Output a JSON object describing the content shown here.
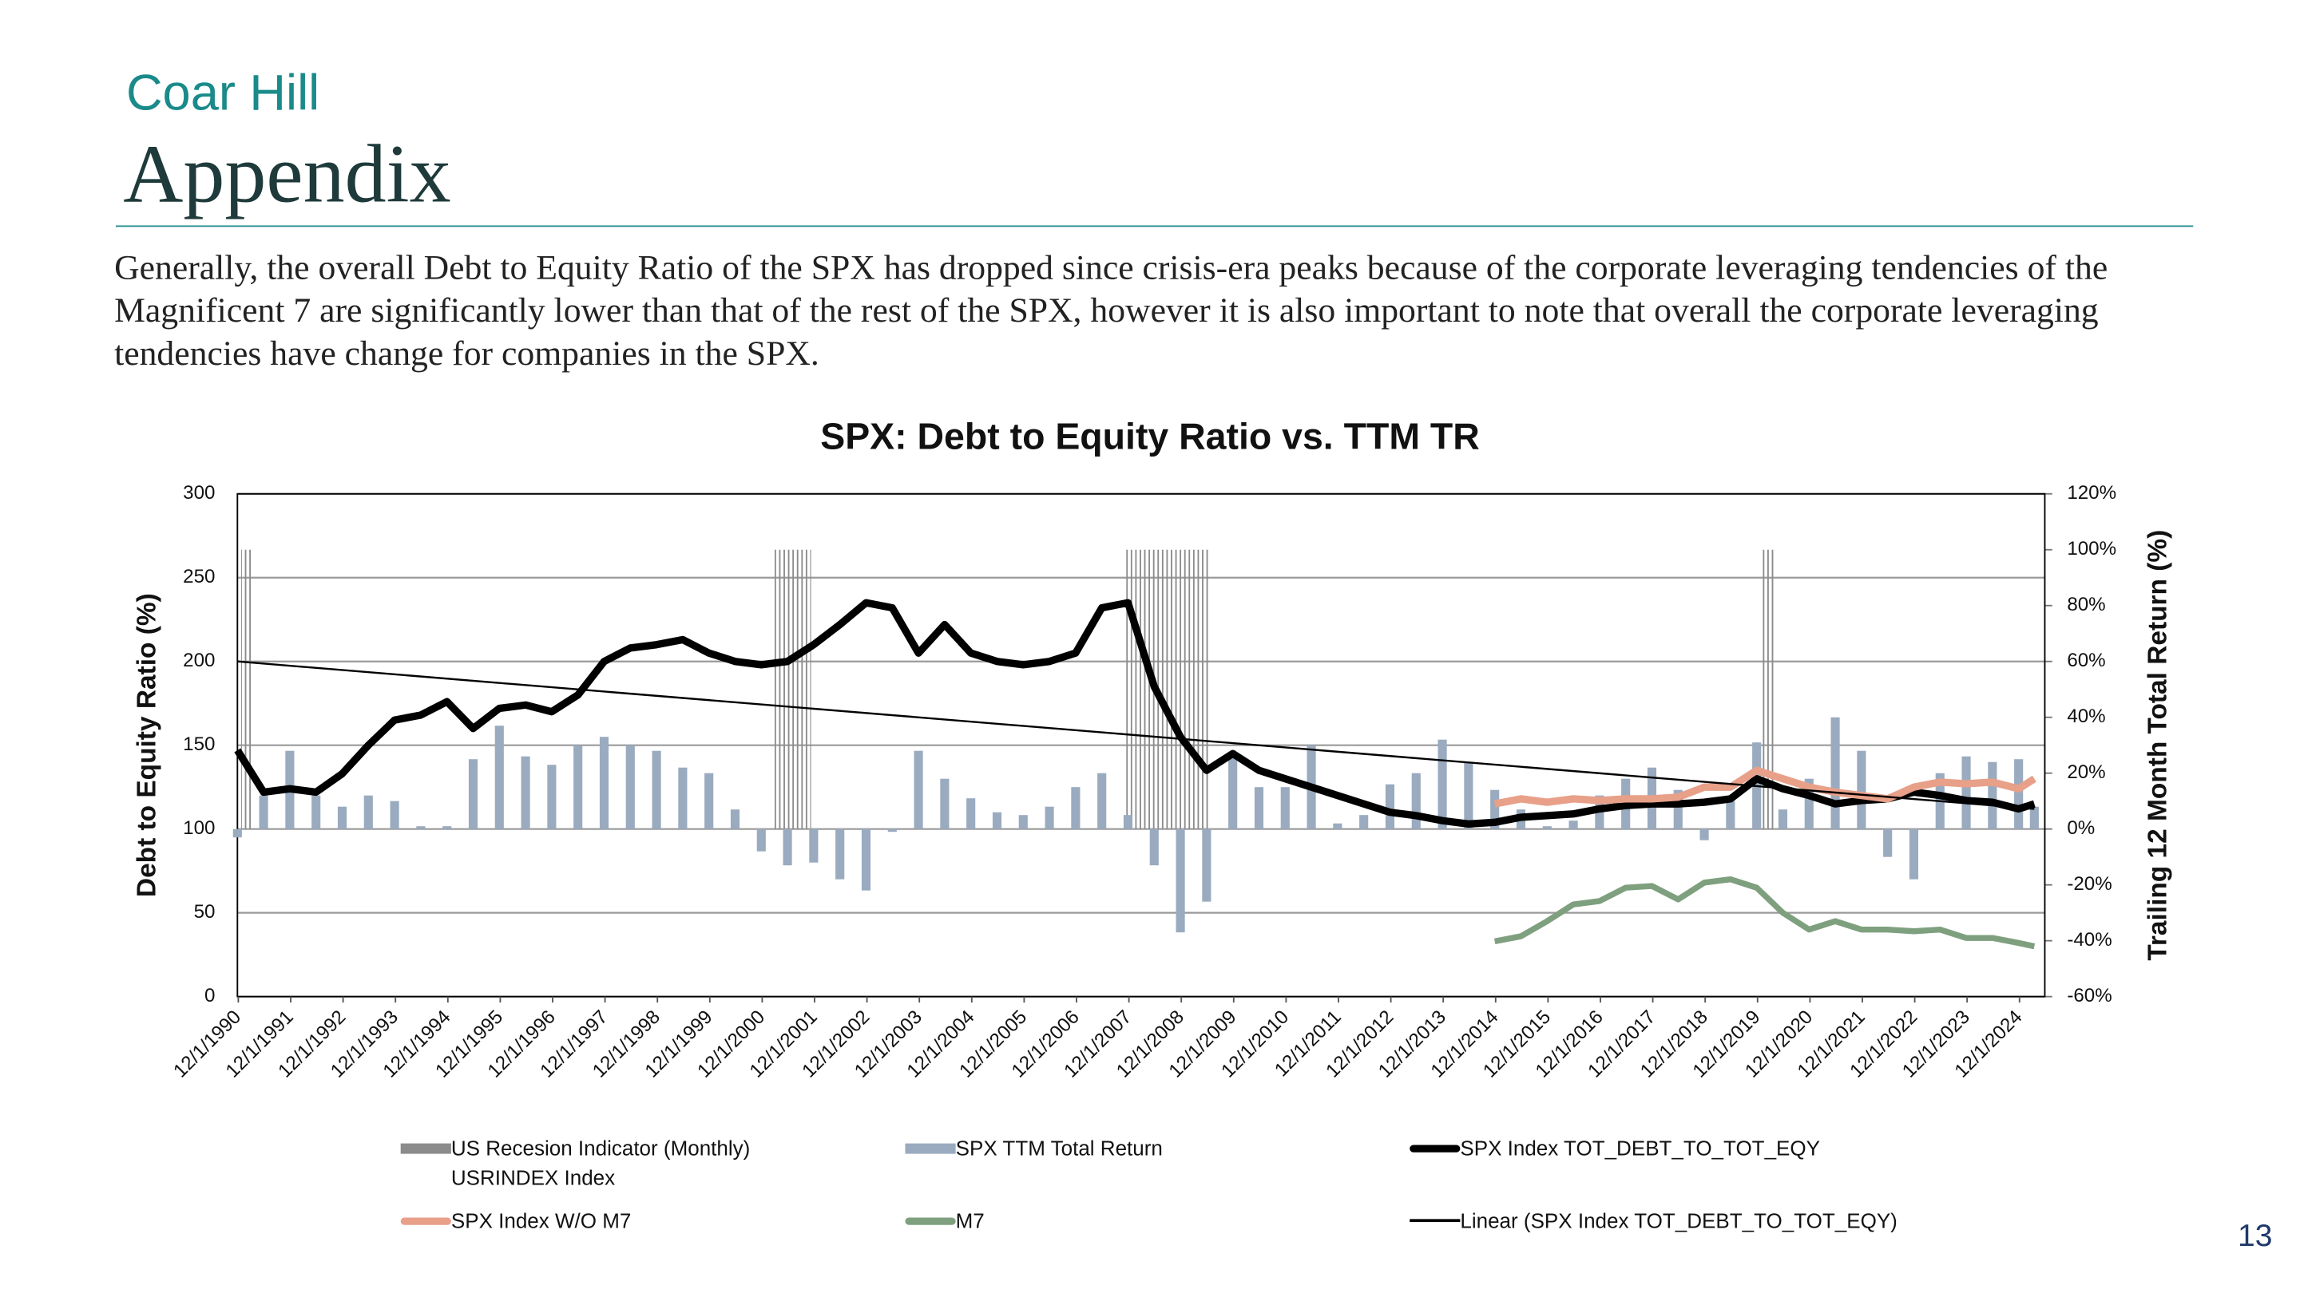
{
  "header": {
    "brand": "Coar Hill",
    "title": "Appendix"
  },
  "paragraph": "Generally, the overall Debt to Equity Ratio of the SPX has dropped since crisis-era peaks because of the corporate leveraging tendencies of the Magnificent 7 are significantly lower than that of the rest of the SPX, however it is also important to note that overall the corporate leveraging tendencies have change for companies in the SPX.",
  "page_number": "13",
  "chart_data": {
    "type": "combo",
    "title": "SPX: Debt to Equity Ratio vs. TTM TR",
    "ylabel": "Debt to Equity Ratio (%)",
    "y2label": "Trailing 12 Month Total Return (%)",
    "grid": true,
    "xlim": [
      1990.9,
      2025.4
    ],
    "xticks": [
      {
        "value": 1990.917,
        "label": "12/1/1990"
      },
      {
        "value": 1991.917,
        "label": "12/1/1991"
      },
      {
        "value": 1992.917,
        "label": "12/1/1992"
      },
      {
        "value": 1993.917,
        "label": "12/1/1993"
      },
      {
        "value": 1994.917,
        "label": "12/1/1994"
      },
      {
        "value": 1995.917,
        "label": "12/1/1995"
      },
      {
        "value": 1996.917,
        "label": "12/1/1996"
      },
      {
        "value": 1997.917,
        "label": "12/1/1997"
      },
      {
        "value": 1998.917,
        "label": "12/1/1998"
      },
      {
        "value": 1999.917,
        "label": "12/1/1999"
      },
      {
        "value": 2000.917,
        "label": "12/1/2000"
      },
      {
        "value": 2001.917,
        "label": "12/1/2001"
      },
      {
        "value": 2002.917,
        "label": "12/1/2002"
      },
      {
        "value": 2003.917,
        "label": "12/1/2003"
      },
      {
        "value": 2004.917,
        "label": "12/1/2004"
      },
      {
        "value": 2005.917,
        "label": "12/1/2005"
      },
      {
        "value": 2006.917,
        "label": "12/1/2006"
      },
      {
        "value": 2007.917,
        "label": "12/1/2007"
      },
      {
        "value": 2008.917,
        "label": "12/1/2008"
      },
      {
        "value": 2009.917,
        "label": "12/1/2009"
      },
      {
        "value": 2010.917,
        "label": "12/1/2010"
      },
      {
        "value": 2011.917,
        "label": "12/1/2011"
      },
      {
        "value": 2012.917,
        "label": "12/1/2012"
      },
      {
        "value": 2013.917,
        "label": "12/1/2013"
      },
      {
        "value": 2014.917,
        "label": "12/1/2014"
      },
      {
        "value": 2015.917,
        "label": "12/1/2015"
      },
      {
        "value": 2016.917,
        "label": "12/1/2016"
      },
      {
        "value": 2017.917,
        "label": "12/1/2017"
      },
      {
        "value": 2018.917,
        "label": "12/1/2018"
      },
      {
        "value": 2019.917,
        "label": "12/1/2019"
      },
      {
        "value": 2020.917,
        "label": "12/1/2020"
      },
      {
        "value": 2021.917,
        "label": "12/1/2021"
      },
      {
        "value": 2022.917,
        "label": "12/1/2022"
      },
      {
        "value": 2023.917,
        "label": "12/1/2023"
      },
      {
        "value": 2024.917,
        "label": "12/1/2024"
      }
    ],
    "ylim": [
      0,
      300
    ],
    "yticks": [
      0,
      50,
      100,
      150,
      200,
      250,
      300
    ],
    "y2lim": [
      -60,
      120
    ],
    "y2ticks": [
      {
        "value": -60,
        "label": "-60%"
      },
      {
        "value": -40,
        "label": "-40%"
      },
      {
        "value": -20,
        "label": "-20%"
      },
      {
        "value": 0,
        "label": "0%"
      },
      {
        "value": 20,
        "label": "20%"
      },
      {
        "value": 40,
        "label": "40%"
      },
      {
        "value": 60,
        "label": "60%"
      },
      {
        "value": 80,
        "label": "80%"
      },
      {
        "value": 100,
        "label": "100%"
      },
      {
        "value": 120,
        "label": "120%"
      }
    ],
    "x": [
      1990.9,
      1991.4,
      1991.9,
      1992.4,
      1992.9,
      1993.4,
      1993.9,
      1994.4,
      1994.9,
      1995.4,
      1995.9,
      1996.4,
      1996.9,
      1997.4,
      1997.9,
      1998.4,
      1998.9,
      1999.4,
      1999.9,
      2000.4,
      2000.9,
      2001.4,
      2001.9,
      2002.4,
      2002.9,
      2003.4,
      2003.9,
      2004.4,
      2004.9,
      2005.4,
      2005.9,
      2006.4,
      2006.9,
      2007.4,
      2007.9,
      2008.4,
      2008.9,
      2009.4,
      2009.9,
      2010.4,
      2010.9,
      2011.4,
      2011.9,
      2012.4,
      2012.9,
      2013.4,
      2013.9,
      2014.4,
      2014.9,
      2015.4,
      2015.9,
      2016.4,
      2016.9,
      2017.4,
      2017.9,
      2018.4,
      2018.9,
      2019.4,
      2019.9,
      2020.4,
      2020.9,
      2021.4,
      2021.9,
      2022.4,
      2022.9,
      2023.4,
      2023.9,
      2024.4,
      2024.9,
      2025.2
    ],
    "series": [
      {
        "name": "US Recesion Indicator (Monthly) USRINDEX Index",
        "kind": "recession",
        "axis": "y2",
        "color": "#8c8c8c",
        "value": 100,
        "periods": [
          [
            1990.97,
            1991.2
          ],
          [
            2001.1,
            2001.85
          ],
          [
            2007.85,
            2009.45
          ],
          [
            2020.0,
            2020.25
          ]
        ]
      },
      {
        "name": "SPX TTM Total Return",
        "kind": "bar",
        "axis": "y2",
        "color": "#9aabc0",
        "values": [
          -3,
          12,
          28,
          12,
          8,
          12,
          10,
          1,
          1,
          25,
          37,
          26,
          23,
          30,
          33,
          30,
          28,
          22,
          20,
          7,
          -8,
          -13,
          -12,
          -18,
          -22,
          -1,
          28,
          18,
          11,
          6,
          5,
          8,
          15,
          20,
          5,
          -13,
          -37,
          -26,
          26,
          15,
          15,
          30,
          2,
          5,
          16,
          20,
          32,
          24,
          14,
          7,
          1,
          3,
          12,
          18,
          22,
          14,
          -4,
          10,
          31,
          7,
          18,
          40,
          28,
          -10,
          -18,
          20,
          26,
          24,
          25,
          8
        ]
      },
      {
        "name": "SPX Index TOT_DEBT_TO_TOT_EQY",
        "kind": "line",
        "color": "#000000",
        "width": 5,
        "values": [
          147,
          122,
          124,
          122,
          133,
          150,
          165,
          168,
          176,
          160,
          172,
          174,
          170,
          180,
          200,
          208,
          210,
          213,
          205,
          200,
          198,
          200,
          210,
          222,
          235,
          232,
          205,
          222,
          205,
          200,
          198,
          200,
          205,
          232,
          235,
          185,
          155,
          135,
          145,
          135,
          130,
          125,
          120,
          115,
          110,
          108,
          105,
          103,
          104,
          107,
          108,
          109,
          112,
          114,
          115,
          115,
          116,
          118,
          130,
          124,
          120,
          115,
          117,
          118,
          122,
          120,
          117,
          116,
          112,
          115
        ]
      },
      {
        "name": "SPX Index W/O M7",
        "kind": "line",
        "color": "#e8a089",
        "width": 5,
        "x": [
          2014.9,
          2015.4,
          2015.9,
          2016.4,
          2016.9,
          2017.4,
          2017.9,
          2018.4,
          2018.9,
          2019.4,
          2019.9,
          2020.4,
          2020.9,
          2021.4,
          2021.9,
          2022.4,
          2022.9,
          2023.4,
          2023.9,
          2024.4,
          2024.9,
          2025.2
        ],
        "values": [
          115,
          118,
          116,
          118,
          117,
          118,
          118,
          119,
          125,
          125,
          135,
          130,
          125,
          122,
          120,
          118,
          125,
          128,
          127,
          128,
          124,
          130
        ]
      },
      {
        "name": "M7",
        "kind": "line",
        "color": "#7fa07f",
        "width": 4,
        "x": [
          2014.9,
          2015.4,
          2015.9,
          2016.4,
          2016.9,
          2017.4,
          2017.9,
          2018.4,
          2018.9,
          2019.4,
          2019.9,
          2020.4,
          2020.9,
          2021.4,
          2021.9,
          2022.4,
          2022.9,
          2023.4,
          2023.9,
          2024.4,
          2024.9,
          2025.2
        ],
        "values": [
          33,
          36,
          45,
          55,
          57,
          65,
          66,
          58,
          68,
          70,
          65,
          50,
          40,
          45,
          40,
          40,
          39,
          40,
          35,
          35,
          32,
          30
        ]
      },
      {
        "name": "Linear (SPX Index TOT_DEBT_TO_TOT_EQY)",
        "kind": "line",
        "color": "#000000",
        "width": 1.3,
        "x": [
          1990.9,
          2025.2
        ],
        "values": [
          200,
          112
        ]
      }
    ]
  }
}
